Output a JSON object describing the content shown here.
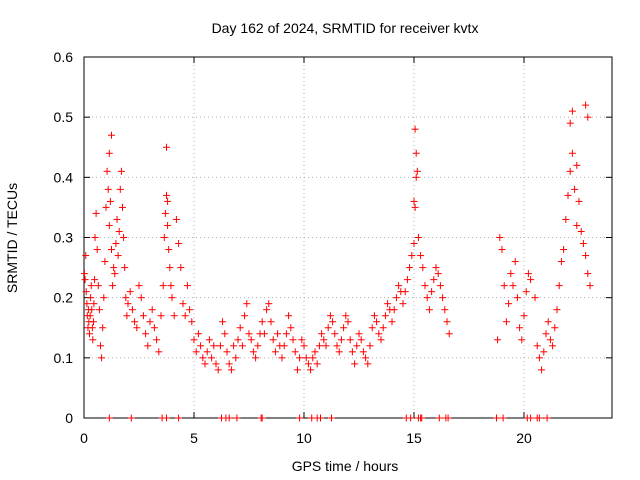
{
  "chart_data": {
    "type": "scatter",
    "title": "Day 162 of 2024, SRMTID for receiver kvtx",
    "xlabel": "GPS time / hours",
    "ylabel": "SRMTID / TECUs",
    "xlim": [
      0,
      24
    ],
    "ylim": [
      0,
      0.6
    ],
    "xticks": [
      0,
      5,
      10,
      15,
      20
    ],
    "yticks": [
      0,
      0.1,
      0.2,
      0.3,
      0.4,
      0.5,
      0.6
    ],
    "xtick_labels": [
      "0",
      "5",
      "10",
      "15",
      "20"
    ],
    "ytick_labels": [
      "0",
      "0.1",
      "0.2",
      "0.3",
      "0.4",
      "0.5",
      "0.6"
    ],
    "grid": true,
    "legend": "none",
    "marker": "+",
    "color": "#ff0000",
    "series": [
      {
        "name": "SRMTID",
        "x": [
          0.02,
          0.05,
          0.08,
          0.1,
          0.13,
          0.15,
          0.18,
          0.2,
          0.22,
          0.25,
          0.28,
          0.3,
          0.33,
          0.35,
          0.38,
          0.4,
          0.43,
          0.45,
          0.48,
          0.5,
          0.55,
          0.6,
          0.65,
          0.7,
          0.75,
          0.8,
          0.85,
          0.9,
          0.95,
          1.0,
          1.05,
          1.1,
          1.15,
          1.2,
          1.25,
          1.3,
          1.35,
          1.4,
          1.45,
          1.5,
          1.55,
          1.6,
          1.65,
          1.7,
          1.75,
          1.8,
          1.85,
          1.9,
          1.95,
          2.0,
          2.1,
          2.2,
          2.3,
          2.4,
          2.5,
          2.6,
          2.7,
          2.8,
          2.9,
          3.0,
          3.1,
          3.2,
          3.3,
          3.4,
          3.5,
          3.6,
          3.65,
          3.7,
          3.75,
          3.8,
          3.85,
          3.9,
          3.95,
          4.0,
          4.1,
          4.2,
          4.3,
          4.4,
          4.5,
          4.6,
          4.7,
          4.8,
          4.9,
          5.0,
          5.1,
          5.2,
          5.3,
          5.4,
          5.5,
          5.6,
          5.7,
          5.8,
          5.9,
          6.0,
          6.1,
          6.2,
          6.3,
          6.4,
          6.5,
          6.6,
          6.7,
          6.8,
          6.9,
          7.0,
          7.1,
          7.2,
          7.3,
          7.4,
          7.5,
          7.6,
          7.7,
          7.8,
          7.9,
          8.0,
          8.1,
          8.2,
          8.3,
          8.4,
          8.5,
          8.6,
          8.7,
          8.8,
          8.9,
          9.0,
          9.1,
          9.2,
          9.3,
          9.4,
          9.5,
          9.6,
          9.7,
          9.8,
          9.9,
          10.0,
          10.1,
          10.2,
          10.3,
          10.4,
          10.5,
          10.6,
          10.7,
          10.8,
          10.9,
          11.0,
          11.1,
          11.2,
          11.3,
          11.4,
          11.5,
          11.6,
          11.7,
          11.8,
          11.9,
          12.0,
          12.1,
          12.2,
          12.3,
          12.4,
          12.5,
          12.6,
          12.7,
          12.8,
          12.9,
          13.0,
          13.1,
          13.2,
          13.3,
          13.4,
          13.5,
          13.6,
          13.7,
          13.8,
          13.9,
          14.0,
          14.1,
          14.2,
          14.3,
          14.4,
          14.5,
          14.6,
          14.7,
          14.8,
          14.9,
          15.0,
          15.05,
          15.1,
          15.15,
          15.2,
          15.3,
          15.4,
          15.5,
          15.6,
          15.7,
          15.8,
          15.9,
          16.0,
          16.1,
          16.2,
          16.3,
          16.4,
          16.5,
          16.6,
          18.8,
          18.9,
          19.0,
          19.1,
          19.2,
          19.3,
          19.4,
          19.5,
          19.6,
          19.7,
          19.8,
          19.9,
          20.0,
          20.1,
          20.2,
          20.3,
          20.5,
          20.6,
          20.7,
          20.8,
          20.9,
          21.0,
          21.1,
          21.2,
          21.3,
          21.4,
          21.5,
          21.6,
          21.7,
          21.8,
          21.9,
          22.0,
          22.1,
          22.2,
          22.3,
          22.4,
          22.5,
          22.6,
          22.7,
          22.8,
          22.9,
          23.0,
          1.15,
          1.25,
          3.75,
          3.8,
          15.0,
          15.05,
          15.1,
          22.1,
          22.2,
          22.4,
          22.8,
          22.9
        ],
        "y": [
          0.24,
          0.23,
          0.27,
          0.21,
          0.19,
          0.17,
          0.15,
          0.18,
          0.16,
          0.14,
          0.17,
          0.2,
          0.22,
          0.18,
          0.15,
          0.13,
          0.16,
          0.19,
          0.23,
          0.3,
          0.34,
          0.28,
          0.22,
          0.18,
          0.12,
          0.1,
          0.15,
          0.2,
          0.26,
          0.35,
          0.41,
          0.38,
          0.44,
          0.36,
          0.28,
          0.22,
          0.25,
          0.24,
          0.29,
          0.33,
          0.27,
          0.31,
          0.38,
          0.41,
          0.35,
          0.3,
          0.25,
          0.2,
          0.17,
          0.19,
          0.21,
          0.18,
          0.16,
          0.15,
          0.22,
          0.2,
          0.17,
          0.14,
          0.12,
          0.16,
          0.18,
          0.15,
          0.13,
          0.11,
          0.17,
          0.22,
          0.3,
          0.34,
          0.37,
          0.32,
          0.28,
          0.25,
          0.22,
          0.2,
          0.17,
          0.33,
          0.29,
          0.25,
          0.19,
          0.17,
          0.22,
          0.18,
          0.16,
          0.13,
          0.11,
          0.14,
          0.12,
          0.1,
          0.09,
          0.11,
          0.13,
          0.1,
          0.12,
          0.09,
          0.08,
          0.12,
          0.16,
          0.14,
          0.11,
          0.09,
          0.08,
          0.12,
          0.1,
          0.13,
          0.15,
          0.12,
          0.17,
          0.19,
          0.14,
          0.13,
          0.11,
          0.1,
          0.12,
          0.14,
          0.16,
          0.14,
          0.18,
          0.19,
          0.16,
          0.13,
          0.11,
          0.14,
          0.12,
          0.1,
          0.12,
          0.14,
          0.17,
          0.15,
          0.13,
          0.11,
          0.08,
          0.1,
          0.13,
          0.12,
          0.1,
          0.09,
          0.08,
          0.1,
          0.11,
          0.09,
          0.12,
          0.14,
          0.13,
          0.12,
          0.15,
          0.17,
          0.16,
          0.14,
          0.12,
          0.11,
          0.13,
          0.15,
          0.17,
          0.16,
          0.13,
          0.11,
          0.09,
          0.12,
          0.14,
          0.13,
          0.11,
          0.1,
          0.09,
          0.12,
          0.15,
          0.17,
          0.16,
          0.14,
          0.13,
          0.15,
          0.17,
          0.19,
          0.18,
          0.16,
          0.18,
          0.2,
          0.22,
          0.21,
          0.19,
          0.21,
          0.23,
          0.25,
          0.27,
          0.36,
          0.48,
          0.44,
          0.41,
          0.3,
          0.27,
          0.25,
          0.22,
          0.2,
          0.18,
          0.21,
          0.23,
          0.25,
          0.24,
          0.22,
          0.2,
          0.18,
          0.16,
          0.14,
          0.13,
          0.3,
          0.28,
          0.22,
          0.16,
          0.19,
          0.24,
          0.22,
          0.26,
          0.2,
          0.15,
          0.13,
          0.17,
          0.21,
          0.24,
          0.23,
          0.2,
          0.12,
          0.1,
          0.08,
          0.11,
          0.14,
          0.16,
          0.13,
          0.12,
          0.15,
          0.18,
          0.22,
          0.26,
          0.28,
          0.33,
          0.37,
          0.41,
          0.44,
          0.38,
          0.32,
          0.36,
          0.31,
          0.29,
          0.27,
          0.24,
          0.22,
          0.32,
          0.47,
          0.45,
          0.36,
          0.29,
          0.35,
          0.4,
          0.49,
          0.51,
          0.42,
          0.52,
          0.5
        ],
        "zero_values_x": [
          1.15,
          2.15,
          3.55,
          3.75,
          4.3,
          6.25,
          6.45,
          6.6,
          6.95,
          8.05,
          8.1,
          9.8,
          10.35,
          10.6,
          10.75,
          11.25,
          14.65,
          14.85,
          15.2,
          15.3,
          15.35,
          16.15,
          16.45,
          16.55,
          18.75,
          19.05,
          20.15,
          20.3,
          20.6,
          20.7,
          21.05
        ]
      }
    ]
  }
}
